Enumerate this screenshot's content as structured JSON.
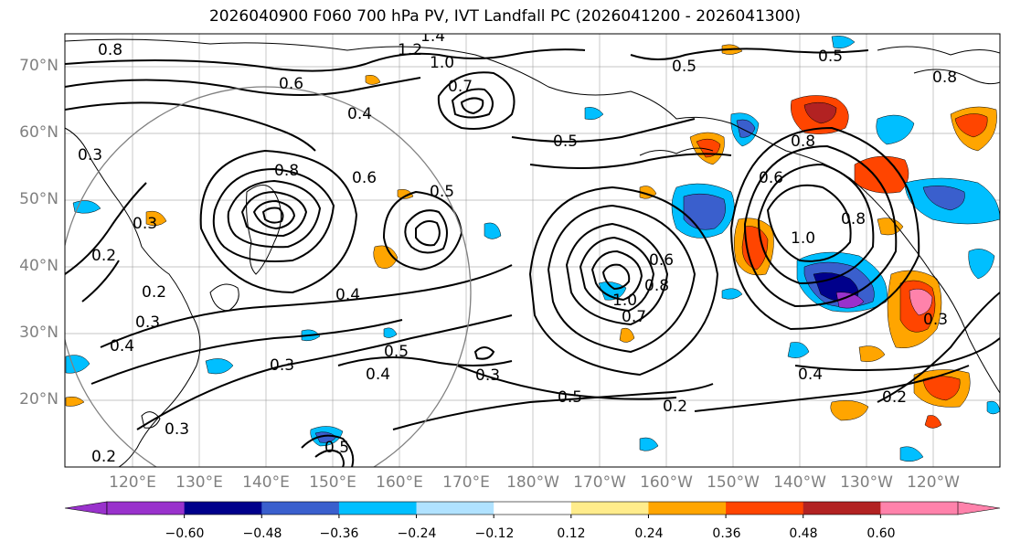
{
  "title": "2026040900 F060 700 hPa PV, IVT Landfall PC (2026041200 - 2026041300)",
  "lat_labels": [
    "70°N",
    "60°N",
    "50°N",
    "40°N",
    "30°N",
    "20°N"
  ],
  "lon_labels": [
    "120°E",
    "130°E",
    "140°E",
    "150°E",
    "160°E",
    "170°E",
    "180°W",
    "170°W",
    "160°W",
    "150°W",
    "140°W",
    "130°W",
    "120°W"
  ],
  "colorbar": {
    "colors": [
      "#9932cc",
      "#00008b",
      "#3a5fcd",
      "#00bfff",
      "#b0e2ff",
      "#ffffff",
      "#ffec8b",
      "#ffa500",
      "#ff4500",
      "#b22222",
      "#ff82ab"
    ],
    "labels": [
      "−0.60",
      "−0.48",
      "−0.36",
      "−0.24",
      "−0.12",
      "0.12",
      "0.24",
      "0.36",
      "0.48",
      "0.60"
    ]
  },
  "contour_labels": [
    "1.4",
    "1.2",
    "1.0",
    "0.8",
    "0.6",
    "0.5",
    "0.8",
    "0.7",
    "0.3",
    "0.4",
    "0.3",
    "0.5",
    "0.8",
    "0.6",
    "0.5",
    "0.8",
    "0.2",
    "0.2",
    "0.3",
    "0.4",
    "0.3",
    "0.4",
    "0.5",
    "0.4",
    "0.3",
    "0.3",
    "0.5",
    "0.6",
    "0.8",
    "0.7",
    "1.0",
    "0.5",
    "0.2",
    "0.4",
    "0.2",
    "1.0",
    "0.6",
    "0.5",
    "0.8",
    "0.2",
    "0.3"
  ]
}
